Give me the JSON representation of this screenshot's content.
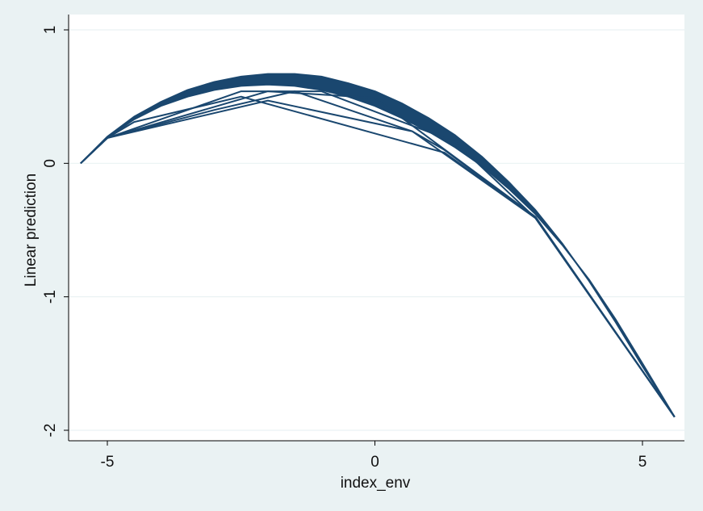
{
  "chart_data": {
    "type": "line",
    "title": "",
    "xlabel": "index_env",
    "ylabel": "Linear prediction",
    "xlim": [
      -5.5,
      5.6
    ],
    "ylim": [
      -2.05,
      1.05
    ],
    "xticks": [
      -5,
      0,
      5
    ],
    "xtick_labels": [
      "-5",
      "0",
      "5"
    ],
    "yticks": [
      1,
      0,
      -1,
      -2
    ],
    "ytick_labels": [
      "1",
      "0",
      "-1",
      "-2"
    ],
    "grid": "horizontal",
    "legend": "none",
    "colors": {
      "line": "#1a476f",
      "background": "#eaf2f3",
      "plot_area": "#ffffff",
      "grid": "#eaf2f3"
    },
    "series": [
      {
        "x": [
          -5.5,
          -5.0,
          -4.5,
          -4.0,
          -3.5,
          -3.0,
          -2.5,
          -2.0,
          -1.5,
          -1.0,
          -0.5,
          0.0,
          0.5,
          1.0,
          1.5,
          2.0,
          2.5,
          3.0,
          3.5,
          4.0,
          4.5,
          5.0,
          5.6
        ],
        "y": [
          0.0,
          0.2,
          0.35,
          0.46,
          0.55,
          0.61,
          0.65,
          0.67,
          0.67,
          0.65,
          0.6,
          0.54,
          0.45,
          0.34,
          0.21,
          0.05,
          -0.14,
          -0.35,
          -0.6,
          -0.88,
          -1.19,
          -1.52,
          -1.9
        ]
      },
      {
        "x": [
          -5.5,
          -5.0,
          -4.5,
          -4.0,
          -3.5,
          -3.0,
          -2.5,
          -2.0,
          -1.5,
          -1.0,
          -0.5,
          0.0,
          0.5,
          1.0,
          1.5,
          2.0,
          2.5,
          3.0,
          3.5,
          4.0,
          4.5,
          5.0,
          5.6
        ],
        "y": [
          0.0,
          0.19,
          0.33,
          0.43,
          0.5,
          0.55,
          0.58,
          0.59,
          0.58,
          0.55,
          0.5,
          0.43,
          0.34,
          0.24,
          0.12,
          -0.02,
          -0.19,
          -0.38,
          -0.61,
          -0.87,
          -1.17,
          -1.5,
          -1.9
        ]
      },
      {
        "x": [
          -5.5,
          -5.0,
          -2.0,
          0.0,
          3.0,
          5.6
        ],
        "y": [
          0.0,
          0.19,
          0.54,
          0.49,
          -0.4,
          -1.9
        ]
      },
      {
        "x": [
          -5.5,
          -5.0,
          -4.5,
          -2.5,
          1.3,
          3.0,
          5.6
        ],
        "y": [
          0.0,
          0.19,
          0.31,
          0.5,
          0.08,
          -0.41,
          -1.9
        ]
      },
      {
        "x": [
          -5.5,
          -5.0,
          -2.0,
          0.7,
          1.3,
          3.0,
          5.6
        ],
        "y": [
          0.0,
          0.19,
          0.47,
          0.24,
          0.1,
          -0.41,
          -1.9
        ]
      },
      {
        "x": [
          -5.5,
          -5.0,
          -3.0,
          -1.5,
          0.7,
          3.0,
          5.6
        ],
        "y": [
          0.0,
          0.19,
          0.4,
          0.54,
          0.24,
          -0.41,
          -1.9
        ]
      },
      {
        "x": [
          -5.5,
          -5.0,
          -2.5,
          -1.0,
          1.5,
          3.0,
          5.6
        ],
        "y": [
          0.0,
          0.19,
          0.54,
          0.54,
          0.16,
          -0.41,
          -1.9
        ]
      }
    ]
  }
}
